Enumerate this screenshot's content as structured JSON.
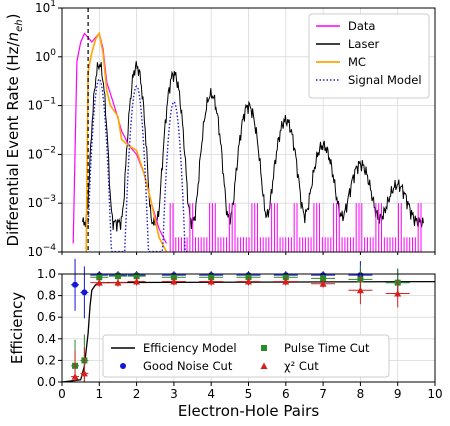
{
  "chart_data": [
    {
      "type": "line",
      "panel": "top",
      "xlabel": "",
      "ylabel": "Differential Event Rate (Hz/n_eh)",
      "xlim": [
        0,
        10
      ],
      "ylim_log10": [
        -4,
        1
      ],
      "yscale": "log",
      "grid": true,
      "legend_position": "top-right",
      "yticks": [
        "10^{-4}",
        "10^{-3}",
        "10^{-2}",
        "10^{-1}",
        "10^{0}",
        "10^{1}"
      ],
      "threshold_line_x": 0.7,
      "legend": [
        "Data",
        "Laser",
        "MC",
        "Signal Model"
      ],
      "colors": {
        "data": "#ff00ff",
        "laser": "#000000",
        "mc": "#ffa500",
        "signal": "#1f1fcf"
      },
      "series": [
        {
          "name": "Laser",
          "peaks": [
            {
              "x": 1,
              "y": 0.7
            },
            {
              "x": 2,
              "y": 0.65
            },
            {
              "x": 3,
              "y": 0.45
            },
            {
              "x": 4,
              "y": 0.17
            },
            {
              "x": 5,
              "y": 0.1
            },
            {
              "x": 6,
              "y": 0.05
            },
            {
              "x": 7,
              "y": 0.015
            },
            {
              "x": 8,
              "y": 0.006
            },
            {
              "x": 9,
              "y": 0.002
            }
          ]
        },
        {
          "name": "Signal Model",
          "peaks": [
            {
              "x": 1,
              "y": 0.35
            },
            {
              "x": 2,
              "y": 0.25
            },
            {
              "x": 3,
              "y": 0.12
            }
          ]
        },
        {
          "name": "MC",
          "points": [
            [
              0.65,
              0.0001
            ],
            [
              0.7,
              0.5
            ],
            [
              0.8,
              1.2
            ],
            [
              0.9,
              2.3
            ],
            [
              1.0,
              3.0
            ],
            [
              1.1,
              1.2
            ],
            [
              1.2,
              0.2
            ],
            [
              1.3,
              0.1
            ],
            [
              1.5,
              0.06
            ],
            [
              1.6,
              0.02
            ],
            [
              1.8,
              0.015
            ],
            [
              2.0,
              0.012
            ],
            [
              2.2,
              0.004
            ],
            [
              2.4,
              0.001
            ],
            [
              2.6,
              0.0002
            ],
            [
              2.8,
              0.0001
            ]
          ]
        },
        {
          "name": "Data",
          "points": [
            [
              0.3,
              0.00015
            ],
            [
              0.4,
              0.8
            ],
            [
              0.5,
              2.0
            ],
            [
              0.6,
              3.0
            ],
            [
              0.7,
              2.5
            ],
            [
              0.8,
              2.0
            ],
            [
              0.9,
              2.5
            ],
            [
              1.0,
              3.0
            ],
            [
              1.1,
              1.5
            ],
            [
              1.2,
              0.3
            ],
            [
              1.4,
              0.1
            ],
            [
              1.6,
              0.03
            ],
            [
              1.8,
              0.015
            ],
            [
              2.0,
              0.01
            ],
            [
              2.2,
              0.004
            ],
            [
              2.4,
              0.001
            ],
            [
              2.6,
              0.0003
            ],
            [
              2.8,
              0.00015
            ]
          ]
        }
      ]
    },
    {
      "type": "scatter",
      "panel": "bottom",
      "xlabel": "Electron-Hole Pairs",
      "ylabel": "Efficiency",
      "xlim": [
        0,
        10
      ],
      "ylim": [
        0,
        1.0
      ],
      "grid": true,
      "legend_position": "bottom-center",
      "xticks": [
        "0",
        "1",
        "2",
        "3",
        "4",
        "5",
        "6",
        "7",
        "8",
        "9",
        "10"
      ],
      "yticks": [
        "0.0",
        "0.2",
        "0.4",
        "0.6",
        "0.8",
        "1.0"
      ],
      "legend": [
        {
          "label": "Efficiency Model",
          "marker": "line"
        },
        {
          "label": "Good Noise Cut",
          "marker": "circle"
        },
        {
          "label": "Pulse Time Cut",
          "marker": "square"
        },
        {
          "label": "χ² Cut",
          "marker": "triangle"
        }
      ],
      "colors": {
        "model": "#000000",
        "noise": "#1515d6",
        "pulse": "#2a8a2a",
        "chi2": "#d62020"
      },
      "series": [
        {
          "name": "Efficiency Model",
          "points": [
            [
              0.0,
              0.0
            ],
            [
              0.5,
              0.02
            ],
            [
              0.6,
              0.15
            ],
            [
              0.7,
              0.45
            ],
            [
              0.75,
              0.7
            ],
            [
              0.8,
              0.85
            ],
            [
              0.9,
              0.9
            ],
            [
              1.0,
              0.92
            ],
            [
              10.0,
              0.93
            ]
          ]
        },
        {
          "name": "Good Noise Cut",
          "x": [
            0.35,
            0.6,
            1.0,
            1.5,
            2.0,
            3.0,
            4.0,
            5.0,
            6.0,
            7.0,
            8.0,
            9.0
          ],
          "y": [
            0.9,
            0.83,
            0.99,
            0.99,
            0.99,
            0.99,
            0.99,
            0.99,
            0.99,
            0.99,
            0.99,
            0.92
          ]
        },
        {
          "name": "Pulse Time Cut",
          "x": [
            0.35,
            0.6,
            1.0,
            1.5,
            2.0,
            3.0,
            4.0,
            5.0,
            6.0,
            7.0,
            8.0,
            9.0
          ],
          "y": [
            0.15,
            0.2,
            0.97,
            0.98,
            0.98,
            0.97,
            0.97,
            0.97,
            0.97,
            0.96,
            0.95,
            0.92
          ]
        },
        {
          "name": "χ² Cut",
          "x": [
            0.35,
            0.6,
            1.0,
            1.5,
            2.0,
            3.0,
            4.0,
            5.0,
            6.0,
            7.0,
            8.0,
            9.0
          ],
          "y": [
            0.05,
            0.08,
            0.92,
            0.92,
            0.93,
            0.93,
            0.93,
            0.93,
            0.93,
            0.91,
            0.85,
            0.82
          ]
        }
      ]
    }
  ]
}
